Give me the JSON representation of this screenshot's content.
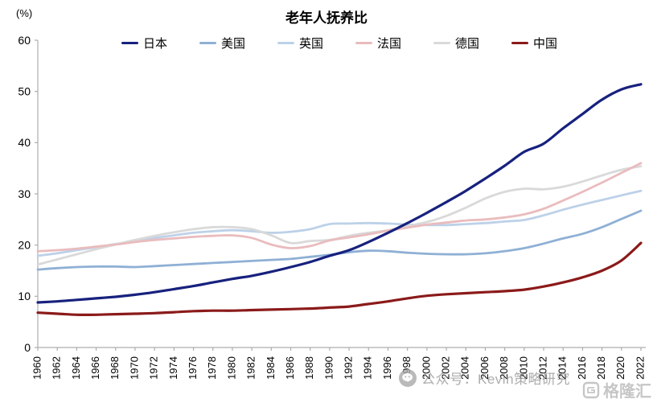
{
  "watermarks": {
    "wechat_text": "公众号：Kevin策略研究",
    "brand_text": "格隆汇"
  },
  "colors": {
    "axis": "#adadad",
    "tick_text": "#000000",
    "watermark_gray": "#969696"
  },
  "chart_data": {
    "type": "line",
    "title": "老年人抚养比",
    "unit_label": "(%)",
    "xlabel": "",
    "ylabel": "(%)",
    "ylim": [
      0,
      60
    ],
    "yticks": [
      0,
      10,
      20,
      30,
      40,
      50,
      60
    ],
    "grid": false,
    "legend_position": "top",
    "x": [
      1960,
      1962,
      1964,
      1966,
      1968,
      1970,
      1972,
      1974,
      1976,
      1978,
      1980,
      1982,
      1984,
      1986,
      1988,
      1990,
      1992,
      1994,
      1996,
      1998,
      2000,
      2002,
      2004,
      2006,
      2008,
      2010,
      2012,
      2014,
      2016,
      2018,
      2020,
      2022
    ],
    "series": [
      {
        "name": "日本",
        "color": "#17217E",
        "width": 3.2,
        "values": [
          8.8,
          9.0,
          9.3,
          9.6,
          9.9,
          10.3,
          10.8,
          11.4,
          12.0,
          12.7,
          13.4,
          14.0,
          14.8,
          15.7,
          16.7,
          17.9,
          19.0,
          20.6,
          22.4,
          24.3,
          26.3,
          28.4,
          30.6,
          33.0,
          35.5,
          38.2,
          39.8,
          42.8,
          45.6,
          48.4,
          50.4,
          51.4
        ]
      },
      {
        "name": "美国",
        "color": "#8FB0D5",
        "width": 2.8,
        "values": [
          15.2,
          15.5,
          15.7,
          15.8,
          15.8,
          15.7,
          15.9,
          16.1,
          16.3,
          16.5,
          16.7,
          16.9,
          17.1,
          17.3,
          17.7,
          18.1,
          18.6,
          18.9,
          18.8,
          18.5,
          18.3,
          18.2,
          18.2,
          18.4,
          18.8,
          19.4,
          20.3,
          21.3,
          22.2,
          23.5,
          25.1,
          26.7
        ]
      },
      {
        "name": "英国",
        "color": "#BDD1E8",
        "width": 2.8,
        "values": [
          17.9,
          18.4,
          19.0,
          19.6,
          20.2,
          20.8,
          21.4,
          21.9,
          22.4,
          22.7,
          22.9,
          22.7,
          22.4,
          22.6,
          23.1,
          24.1,
          24.2,
          24.3,
          24.2,
          24.0,
          23.9,
          23.9,
          24.1,
          24.3,
          24.6,
          24.9,
          25.8,
          26.9,
          27.9,
          28.8,
          29.7,
          30.6
        ]
      },
      {
        "name": "法国",
        "color": "#E9BCBE",
        "width": 2.8,
        "values": [
          18.8,
          19.0,
          19.3,
          19.7,
          20.1,
          20.6,
          21.0,
          21.3,
          21.6,
          21.8,
          21.9,
          21.4,
          20.1,
          19.4,
          19.8,
          20.9,
          21.5,
          22.1,
          22.8,
          23.4,
          24.0,
          24.4,
          24.8,
          25.0,
          25.4,
          26.0,
          27.1,
          28.7,
          30.4,
          32.2,
          34.1,
          36.0
        ]
      },
      {
        "name": "德国",
        "color": "#D9D9D9",
        "width": 2.8,
        "values": [
          16.2,
          17.2,
          18.2,
          19.2,
          20.1,
          21.0,
          21.8,
          22.5,
          23.1,
          23.5,
          23.5,
          23.1,
          21.9,
          20.4,
          20.8,
          21.0,
          21.8,
          22.4,
          22.9,
          23.7,
          24.5,
          25.7,
          27.3,
          29.1,
          30.4,
          31.0,
          30.9,
          31.4,
          32.4,
          33.6,
          34.7,
          35.4
        ]
      },
      {
        "name": "中国",
        "color": "#8B1A1A",
        "width": 3.2,
        "values": [
          6.8,
          6.6,
          6.4,
          6.4,
          6.5,
          6.6,
          6.7,
          6.9,
          7.1,
          7.2,
          7.2,
          7.3,
          7.4,
          7.5,
          7.6,
          7.8,
          8.0,
          8.5,
          9.0,
          9.6,
          10.1,
          10.4,
          10.6,
          10.8,
          11.0,
          11.3,
          11.9,
          12.7,
          13.7,
          15.0,
          17.0,
          20.4
        ]
      }
    ]
  }
}
